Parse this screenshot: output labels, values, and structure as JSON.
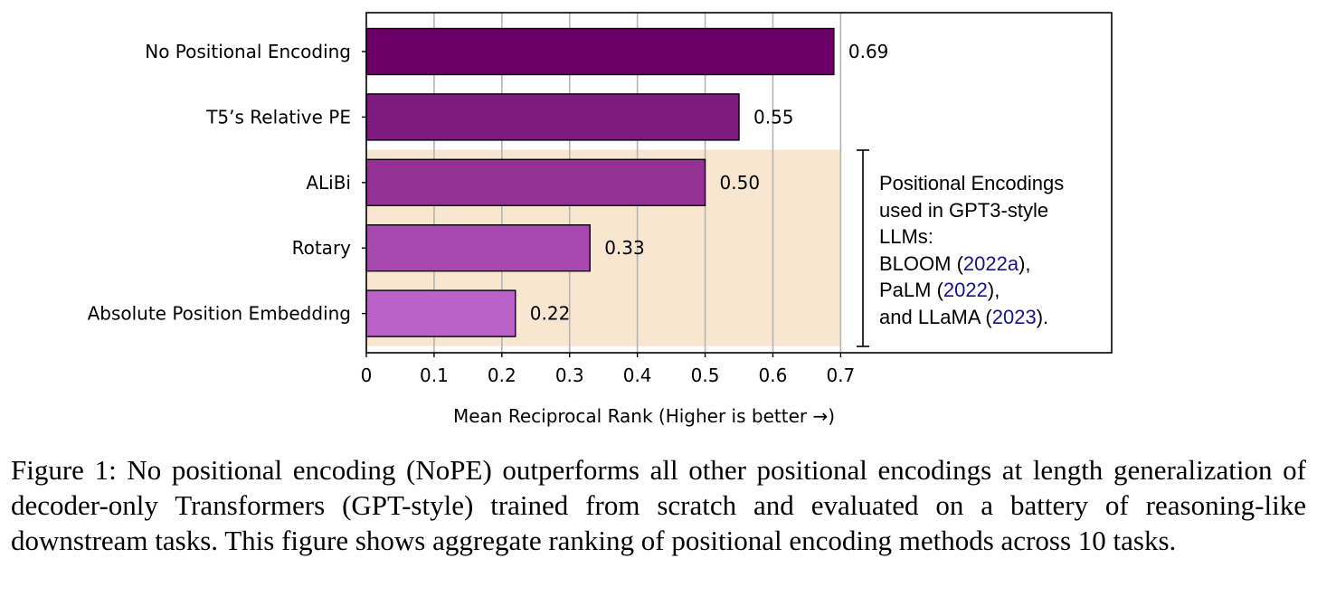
{
  "chart_data": {
    "type": "bar",
    "orientation": "horizontal",
    "categories": [
      "No Positional Encoding",
      "T5’s Relative PE",
      "ALiBi",
      "Rotary",
      "Absolute Position Embedding"
    ],
    "values": [
      0.69,
      0.55,
      0.5,
      0.33,
      0.22
    ],
    "value_labels": [
      "0.69",
      "0.55",
      "0.50",
      "0.33",
      "0.22"
    ],
    "bar_colors": [
      "#6b0066",
      "#7f1a7f",
      "#943194",
      "#a749ae",
      "#bb62c9"
    ],
    "xlabel": "Mean Reciprocal Rank (Higher is better →)",
    "xlim": [
      0,
      1.1
    ],
    "xticks": [
      0,
      0.1,
      0.2,
      0.3,
      0.4,
      0.5,
      0.6,
      0.7
    ],
    "xtick_labels": [
      "0",
      "0.1",
      "0.2",
      "0.3",
      "0.4",
      "0.5",
      "0.6",
      "0.7"
    ],
    "grid": "vertical",
    "highlight": {
      "categories": [
        "ALiBi",
        "Rotary",
        "Absolute Position Embedding"
      ],
      "x_range": [
        0,
        0.7
      ],
      "color": "#f8e6d1"
    },
    "annotation": {
      "line1": "Positional Encodings",
      "line2": "used in GPT3-style",
      "line3": "LLMs:",
      "line4_text": "BLOOM (",
      "line4_cite": "2022a",
      "line4_end": "),",
      "line5_text": "PaLM (",
      "line5_cite": "2022",
      "line5_end": "),",
      "line6_text": "and LLaMA (",
      "line6_cite": "2023",
      "line6_end": ")."
    }
  },
  "caption": "Figure 1: No positional encoding (NoPE) outperforms all other positional encodings at length generalization of decoder-only Transformers (GPT-style) trained from scratch and evaluated on a battery of reasoning-like downstream tasks. This figure shows aggregate ranking of positional encoding methods across 10 tasks."
}
